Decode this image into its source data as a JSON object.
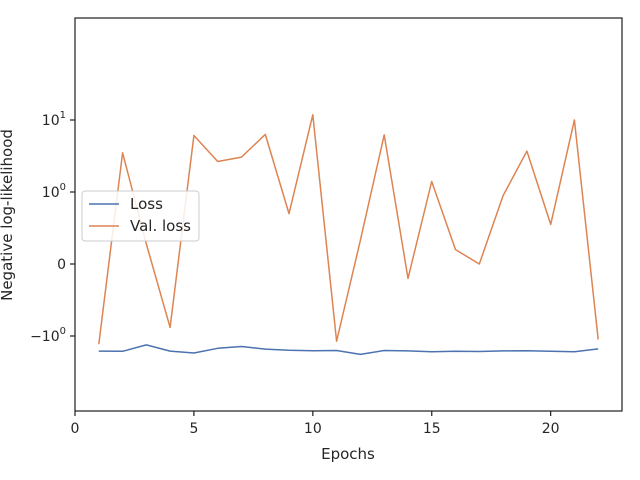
{
  "chart_data": {
    "type": "line",
    "title": "",
    "xlabel": "Epochs",
    "ylabel": "Negative log-likelihood",
    "yscale": "symlog",
    "grid": false,
    "legend_position": "center-left",
    "xlim": [
      0,
      23
    ],
    "xticks": [
      {
        "value": 0,
        "label": "0"
      },
      {
        "value": 5,
        "label": "5"
      },
      {
        "value": 10,
        "label": "10"
      },
      {
        "value": 15,
        "label": "15"
      },
      {
        "value": 20,
        "label": "20"
      }
    ],
    "yticks": [
      {
        "value": 10,
        "base": "10",
        "exp": "1",
        "sign": ""
      },
      {
        "value": 1,
        "base": "10",
        "exp": "0",
        "sign": ""
      },
      {
        "value": 0,
        "base": "0",
        "exp": "",
        "sign": ""
      },
      {
        "value": -1,
        "base": "10",
        "exp": "0",
        "sign": "−1"
      }
    ],
    "x": [
      1,
      2,
      3,
      4,
      5,
      6,
      7,
      8,
      9,
      10,
      11,
      12,
      13,
      14,
      15,
      16,
      17,
      18,
      19,
      20,
      21,
      22
    ],
    "series": [
      {
        "name": "Loss",
        "color": "#4c72b0",
        "values": [
          -1.62,
          -1.63,
          -1.33,
          -1.62,
          -1.72,
          -1.48,
          -1.4,
          -1.52,
          -1.58,
          -1.6,
          -1.59,
          -1.8,
          -1.59,
          -1.61,
          -1.66,
          -1.63,
          -1.64,
          -1.61,
          -1.6,
          -1.63,
          -1.65,
          -1.51
        ]
      },
      {
        "name": "Val. loss",
        "color": "#dd8452",
        "values": [
          -1.3,
          3.5,
          0.28,
          -0.88,
          6.1,
          2.65,
          3.05,
          6.3,
          0.7,
          11.8,
          -1.18,
          0.33,
          6.2,
          -0.2,
          1.4,
          0.2,
          0.0,
          0.95,
          3.7,
          0.55,
          10.0,
          -1.12
        ]
      }
    ]
  }
}
